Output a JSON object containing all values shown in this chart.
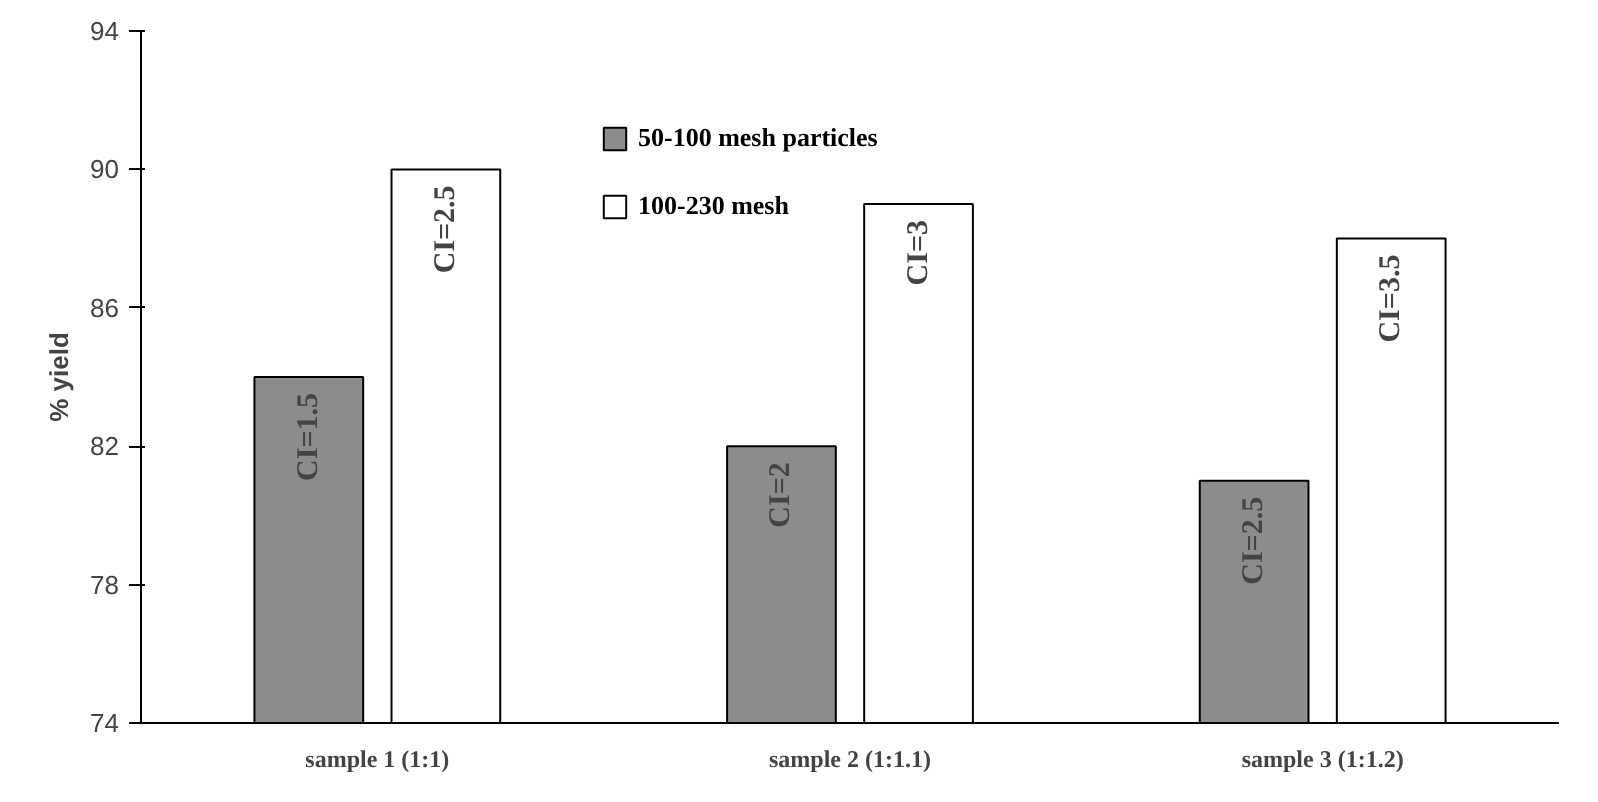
{
  "chart_data": {
    "type": "bar",
    "ylabel": "% yield",
    "categories": [
      "sample 1 (1:1)",
      "sample 2 (1:1.1)",
      "sample 3 (1:1.2)"
    ],
    "series": [
      {
        "name": "50-100 mesh particles",
        "color": "#8c8c8c",
        "values": [
          84,
          82,
          81
        ]
      },
      {
        "name": "100-230 mesh",
        "color": "#ffffff",
        "values": [
          90,
          89,
          88
        ]
      }
    ],
    "annotations": [
      "CI=1.5",
      "CI=2.5",
      "CI=2",
      "CI=3",
      "CI=2.5",
      "CI=3.5"
    ],
    "ylim": [
      74,
      94
    ],
    "yticks": [
      74,
      78,
      82,
      86,
      90,
      94
    ],
    "grid": false,
    "legend": "top"
  }
}
